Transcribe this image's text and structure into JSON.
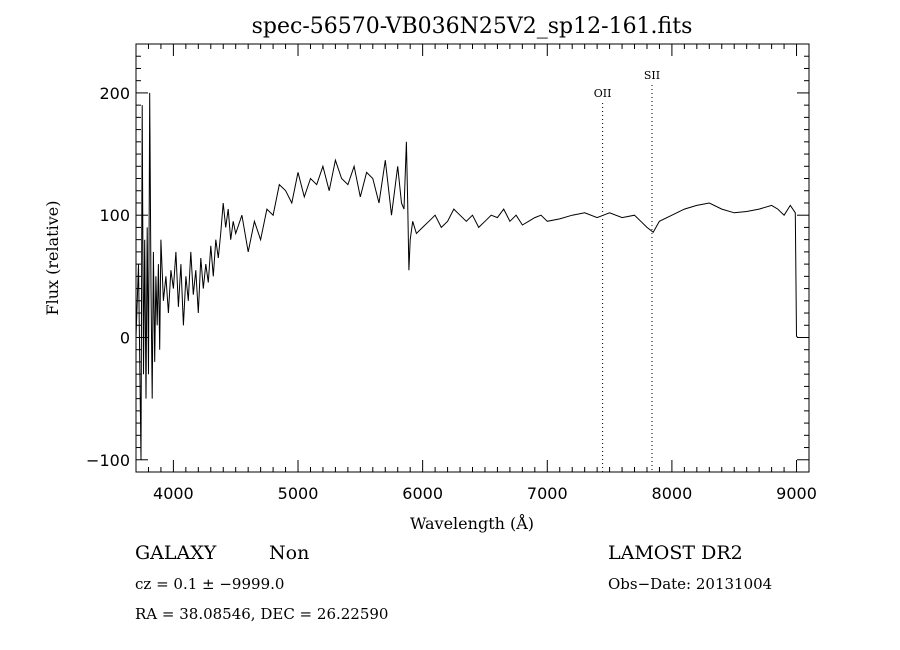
{
  "chart_data": {
    "type": "line",
    "title": "spec-56570-VB036N25V2_sp12-161.fits",
    "xlabel": "Wavelength (Å)",
    "ylabel": "Flux (relative)",
    "xlim": [
      3700,
      9100
    ],
    "ylim": [
      -110,
      240
    ],
    "x_ticks": [
      4000,
      5000,
      6000,
      7000,
      8000,
      9000
    ],
    "x_tick_labels": [
      "4000",
      "5000",
      "6000",
      "7000",
      "8000",
      "9000"
    ],
    "y_ticks": [
      -100,
      0,
      100,
      200
    ],
    "y_tick_labels": [
      "−100",
      "0",
      "100",
      "200"
    ],
    "grid": false,
    "line_color": "#000000",
    "annotations": [
      {
        "label": "OII",
        "x": 7444
      },
      {
        "label": "SII",
        "x": 7840
      }
    ],
    "series": [
      {
        "x": [
          3700,
          3720,
          3740,
          3750,
          3760,
          3770,
          3780,
          3790,
          3800,
          3810,
          3820,
          3830,
          3840,
          3850,
          3860,
          3870,
          3880,
          3890,
          3900,
          3920,
          3940,
          3960,
          3980,
          4000,
          4020,
          4040,
          4060,
          4080,
          4100,
          4120,
          4140,
          4160,
          4180,
          4200,
          4220,
          4240,
          4260,
          4280,
          4300,
          4320,
          4340,
          4360,
          4380,
          4400,
          4420,
          4440,
          4460,
          4480,
          4500,
          4550,
          4600,
          4650,
          4700,
          4750,
          4800,
          4850,
          4900,
          4950,
          5000,
          5050,
          5100,
          5150,
          5200,
          5250,
          5300,
          5350,
          5400,
          5450,
          5500,
          5550,
          5600,
          5650,
          5700,
          5750,
          5800,
          5830,
          5850,
          5870,
          5880,
          5890,
          5900,
          5920,
          5950,
          6000,
          6050,
          6100,
          6150,
          6200,
          6250,
          6300,
          6350,
          6400,
          6450,
          6500,
          6550,
          6600,
          6650,
          6700,
          6750,
          6800,
          6850,
          6900,
          6950,
          7000,
          7100,
          7200,
          7300,
          7400,
          7450,
          7500,
          7600,
          7700,
          7750,
          7800,
          7850,
          7900,
          8000,
          8100,
          8200,
          8300,
          8400,
          8500,
          8600,
          8700,
          8800,
          8850,
          8900,
          8950,
          8990,
          9000,
          9010
        ],
        "y": [
          0,
          60,
          -100,
          190,
          -30,
          80,
          -50,
          90,
          -30,
          200,
          40,
          -50,
          70,
          -20,
          50,
          10,
          60,
          -10,
          80,
          30,
          50,
          20,
          55,
          40,
          70,
          25,
          60,
          10,
          50,
          30,
          70,
          35,
          55,
          20,
          65,
          40,
          60,
          45,
          75,
          50,
          80,
          65,
          85,
          110,
          90,
          105,
          80,
          95,
          85,
          100,
          70,
          95,
          80,
          105,
          100,
          125,
          120,
          110,
          135,
          115,
          130,
          125,
          140,
          120,
          145,
          130,
          125,
          140,
          115,
          135,
          130,
          110,
          145,
          100,
          140,
          110,
          105,
          160,
          110,
          55,
          80,
          95,
          85,
          90,
          95,
          100,
          90,
          95,
          105,
          100,
          95,
          100,
          90,
          95,
          100,
          98,
          105,
          95,
          100,
          92,
          95,
          98,
          100,
          95,
          97,
          100,
          102,
          98,
          100,
          102,
          98,
          100,
          95,
          90,
          86,
          95,
          100,
          105,
          108,
          110,
          105,
          102,
          103,
          105,
          108,
          105,
          100,
          108,
          102,
          1,
          0
        ]
      }
    ]
  },
  "info": {
    "class_label": "GALAXY",
    "subclass_label": "Non",
    "survey_label": "LAMOST DR2",
    "cz_text": "cz = 0.1 ± −9999.0",
    "obsdate_text": "Obs−Date: 20131004",
    "coords_text": "RA =  38.08546, DEC =  26.22590"
  }
}
